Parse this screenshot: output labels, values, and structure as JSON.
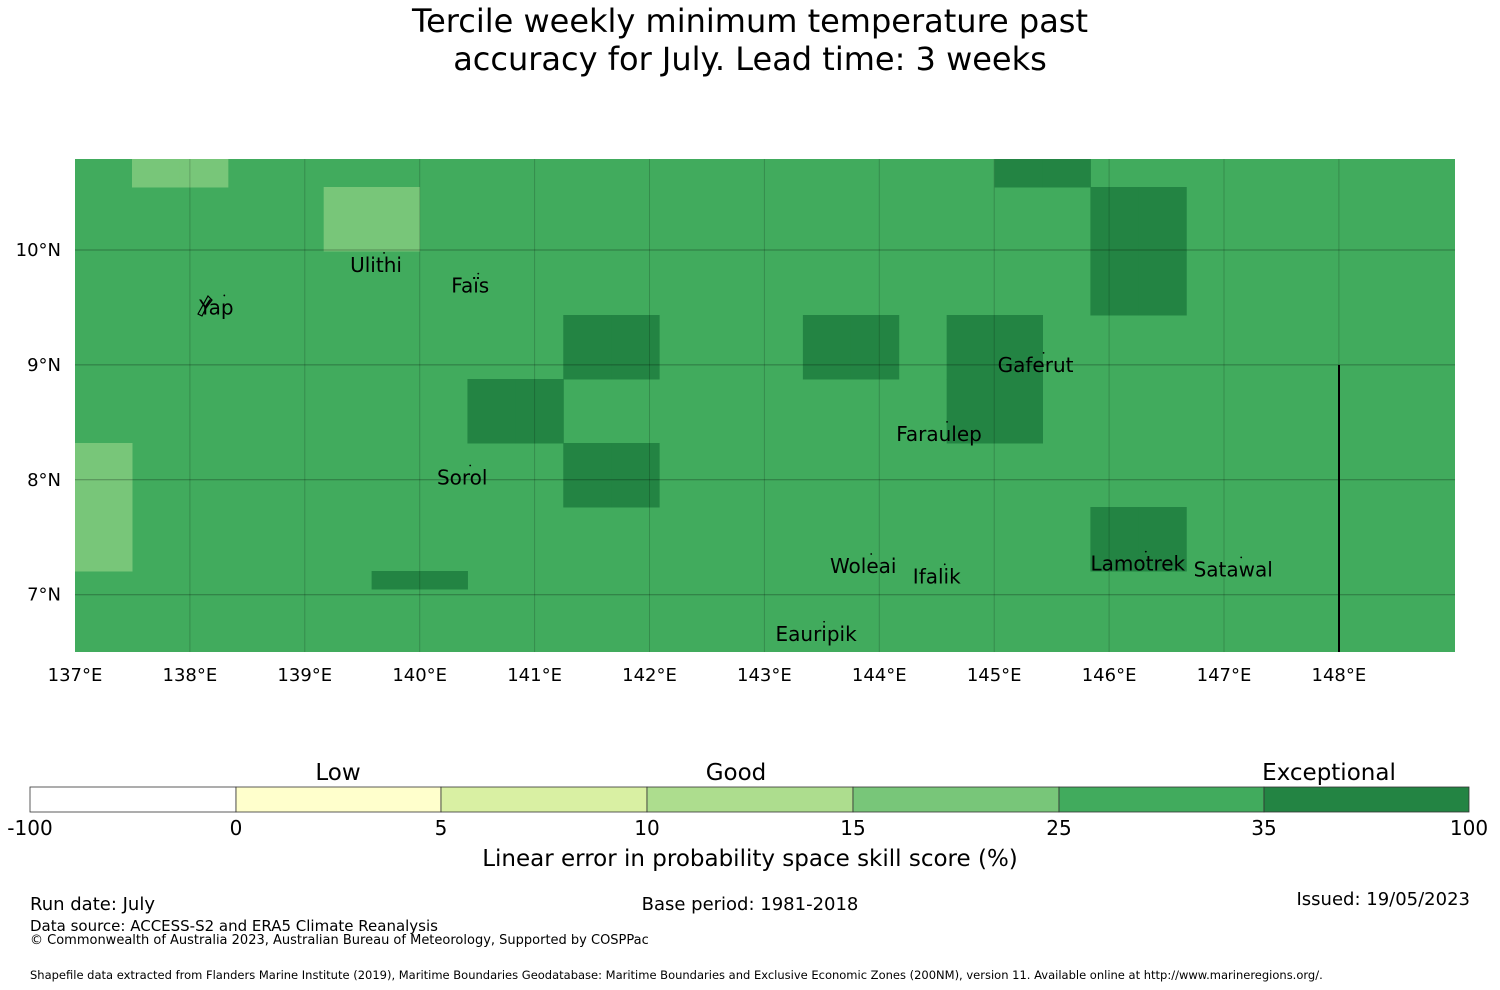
{
  "title_line1": "Tercile weekly minimum temperature past",
  "title_line2": "accuracy for July. Lead time: 3 weeks",
  "map": {
    "lon_labels": [
      "137°E",
      "138°E",
      "139°E",
      "140°E",
      "141°E",
      "142°E",
      "143°E",
      "144°E",
      "145°E",
      "146°E",
      "147°E",
      "148°E"
    ],
    "lat_labels": [
      "10°N",
      "9°N",
      "8°N",
      "7°N"
    ],
    "base_color": "#41ab5d",
    "cells": [
      {
        "c": 1,
        "r": 0,
        "color": "#78c679"
      },
      {
        "c": 2,
        "r": 0,
        "color": "#78c679"
      },
      {
        "c": 19,
        "r": 0,
        "color": "#238443"
      },
      {
        "c": 20,
        "r": 0,
        "color": "#238443"
      },
      {
        "c": 5,
        "r": 1,
        "color": "#78c679"
      },
      {
        "c": 6,
        "r": 1,
        "color": "#78c679"
      },
      {
        "c": 21,
        "r": 1,
        "color": "#238443"
      },
      {
        "c": 22,
        "r": 1,
        "color": "#238443"
      },
      {
        "c": 21,
        "r": 2,
        "color": "#238443"
      },
      {
        "c": 22,
        "r": 2,
        "color": "#238443"
      },
      {
        "c": 10,
        "r": 3,
        "color": "#238443"
      },
      {
        "c": 11,
        "r": 3,
        "color": "#238443"
      },
      {
        "c": 15,
        "r": 3,
        "color": "#238443"
      },
      {
        "c": 16,
        "r": 3,
        "color": "#238443"
      },
      {
        "c": 18,
        "r": 3,
        "color": "#238443"
      },
      {
        "c": 19,
        "r": 3,
        "color": "#238443"
      },
      {
        "c": 8,
        "r": 4,
        "color": "#238443"
      },
      {
        "c": 9,
        "r": 4,
        "color": "#238443"
      },
      {
        "c": 18,
        "r": 4,
        "color": "#238443"
      },
      {
        "c": 19,
        "r": 4,
        "color": "#238443"
      },
      {
        "c": 0,
        "r": 5,
        "color": "#78c679"
      },
      {
        "c": 10,
        "r": 5,
        "color": "#238443"
      },
      {
        "c": 11,
        "r": 5,
        "color": "#238443"
      },
      {
        "c": 0,
        "r": 6,
        "color": "#78c679"
      },
      {
        "c": 21,
        "r": 6,
        "color": "#238443"
      },
      {
        "c": 22,
        "r": 6,
        "color": "#238443"
      },
      {
        "c": 6,
        "r": 7,
        "color": "#238443"
      },
      {
        "c": 7,
        "r": 7,
        "color": "#238443"
      }
    ],
    "places": [
      {
        "name": "Ulithi",
        "lon": 139.62,
        "lat": 9.87
      },
      {
        "name": "Faïs",
        "lon": 140.44,
        "lat": 9.69
      },
      {
        "name": "Yap",
        "lon": 138.23,
        "lat": 9.5
      },
      {
        "name": "Gaferut",
        "lon": 145.36,
        "lat": 9.0
      },
      {
        "name": "Faraulep",
        "lon": 144.52,
        "lat": 8.4
      },
      {
        "name": "Sorol",
        "lon": 140.37,
        "lat": 8.02
      },
      {
        "name": "Woleai",
        "lon": 143.86,
        "lat": 7.25
      },
      {
        "name": "Ifalik",
        "lon": 144.5,
        "lat": 7.16
      },
      {
        "name": "Lamotrek",
        "lon": 146.25,
        "lat": 7.27
      },
      {
        "name": "Satawal",
        "lon": 147.08,
        "lat": 7.22
      },
      {
        "name": "Eauripik",
        "lon": 143.45,
        "lat": 6.66
      }
    ]
  },
  "colorbar": {
    "category_labels": [
      "Low",
      "Good",
      "Exceptional"
    ],
    "colors": [
      "#ffffff",
      "#ffffcc",
      "#d9f0a3",
      "#addd8e",
      "#78c679",
      "#41ab5d",
      "#238443"
    ],
    "ticks": [
      "-100",
      "0",
      "5",
      "10",
      "15",
      "25",
      "35",
      "100"
    ],
    "label": "Linear error in probability space skill score (%)"
  },
  "footer": {
    "run_date": "Run date: July",
    "base_period": "Base period: 1981-2018",
    "issued": "Issued: 19/05/2023",
    "data_source": "Data source: ACCESS-S2 and ERA5 Climate Reanalysis",
    "copyright": "© Commonwealth of Australia 2023, Australian Bureau of Meteorology, Supported by COSPPac",
    "shapefile": "Shapefile data extracted from Flanders Marine Institute (2019), Maritime Boundaries Geodatabase: Maritime Boundaries and Exclusive Economic Zones (200NM), version 11. Available online at http://www.marineregions.org/."
  }
}
